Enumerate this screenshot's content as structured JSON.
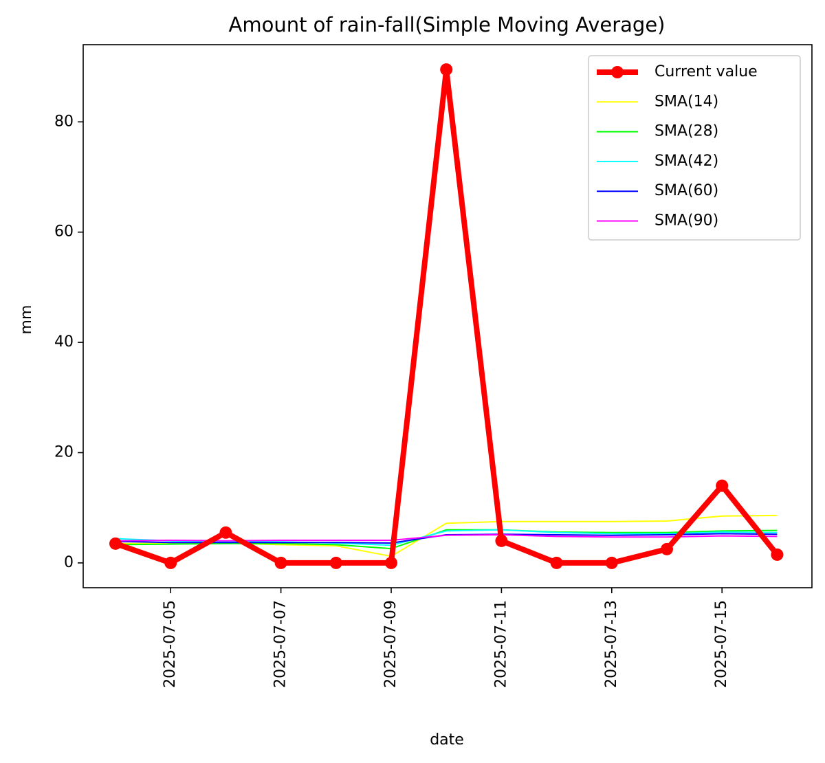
{
  "chart_data": {
    "type": "line",
    "title": "Amount of rain-fall(Simple Moving Average)",
    "xlabel": "date",
    "ylabel": "mm",
    "x": [
      "2025-07-04",
      "2025-07-05",
      "2025-07-06",
      "2025-07-07",
      "2025-07-08",
      "2025-07-09",
      "2025-07-10",
      "2025-07-11",
      "2025-07-12",
      "2025-07-13",
      "2025-07-14",
      "2025-07-15",
      "2025-07-16"
    ],
    "x_ticks": [
      "2025-07-05",
      "2025-07-07",
      "2025-07-09",
      "2025-07-11",
      "2025-07-13",
      "2025-07-15"
    ],
    "ylim": [
      -4.5,
      94
    ],
    "y_ticks": [
      0,
      20,
      40,
      60,
      80
    ],
    "grid": false,
    "legend": "upper right",
    "series": [
      {
        "name": "Current value",
        "color": "#ff0000",
        "marker": true,
        "values": [
          3.5,
          0,
          5.5,
          0,
          0,
          0,
          89.5,
          4,
          0,
          0,
          2.5,
          14,
          1.5
        ]
      },
      {
        "name": "SMA(14)",
        "color": "#ffff00",
        "values": [
          3.5,
          3.5,
          3.6,
          3.3,
          3.1,
          1.2,
          7.2,
          7.5,
          7.5,
          7.5,
          7.6,
          8.5,
          8.6
        ]
      },
      {
        "name": "SMA(28)",
        "color": "#00ff00",
        "values": [
          3.3,
          3.4,
          3.5,
          3.5,
          3.3,
          2.6,
          6.0,
          6.0,
          5.6,
          5.5,
          5.5,
          5.8,
          5.9
        ]
      },
      {
        "name": "SMA(42)",
        "color": "#00ffff",
        "values": [
          4.4,
          4.0,
          3.9,
          3.8,
          3.6,
          3.2,
          5.8,
          6.0,
          5.5,
          5.3,
          5.3,
          5.6,
          5.5
        ]
      },
      {
        "name": "SMA(60)",
        "color": "#0000ff",
        "values": [
          3.9,
          3.7,
          3.7,
          3.7,
          3.7,
          3.6,
          5.1,
          5.2,
          5.1,
          5.0,
          5.1,
          5.3,
          5.2
        ]
      },
      {
        "name": "SMA(90)",
        "color": "#ff00ff",
        "values": [
          4.0,
          4.1,
          4.0,
          4.1,
          4.1,
          4.1,
          5.0,
          5.1,
          4.8,
          4.7,
          4.7,
          4.9,
          4.8
        ]
      }
    ]
  }
}
